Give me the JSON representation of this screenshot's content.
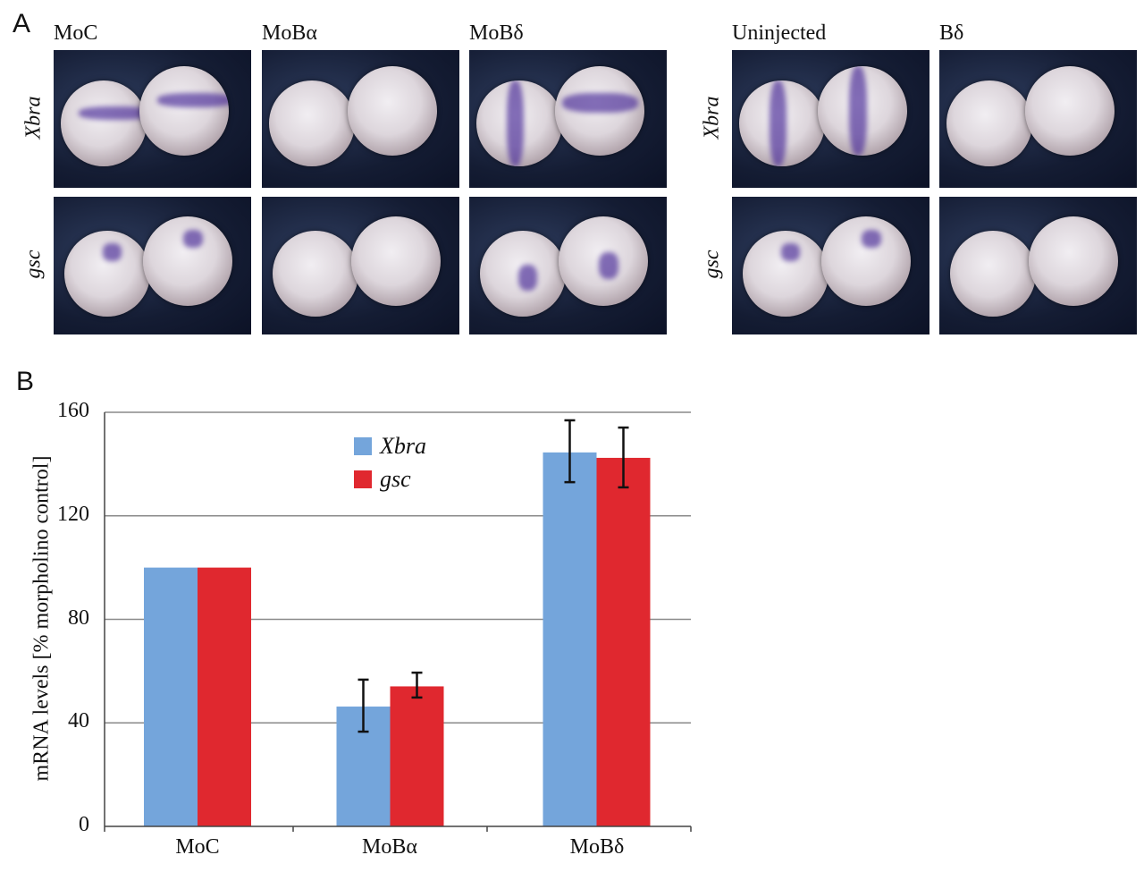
{
  "panel_a": {
    "letter": "A",
    "columns": [
      "MoC",
      "MoBα",
      "MoBδ",
      "Uninjected",
      "Bδ"
    ],
    "rows": [
      "Xbra",
      "gsc"
    ]
  },
  "panel_b": {
    "letter": "B"
  },
  "chart_data": {
    "type": "bar",
    "title": "",
    "xlabel": "",
    "ylabel": "mRNA levels [% morpholino control]",
    "categories": [
      "MoC",
      "MoBα",
      "MoBδ"
    ],
    "ylim": [
      0,
      160
    ],
    "yticks": [
      "0",
      "40",
      "80",
      "120",
      "160"
    ],
    "grid": true,
    "legend_position": "top-center",
    "series": [
      {
        "name": "Xbra",
        "color": "#74a5db",
        "values": [
          100,
          46.3,
          144.5
        ],
        "error": [
          [
            100,
            100
          ],
          [
            36.6,
            56.7
          ],
          [
            133,
            156.9
          ]
        ]
      },
      {
        "name": "gsc",
        "color": "#e0282f",
        "values": [
          100,
          54.1,
          142.4
        ],
        "error": [
          [
            100,
            100
          ],
          [
            49.8,
            59.4
          ],
          [
            131,
            154.1
          ]
        ]
      }
    ]
  }
}
